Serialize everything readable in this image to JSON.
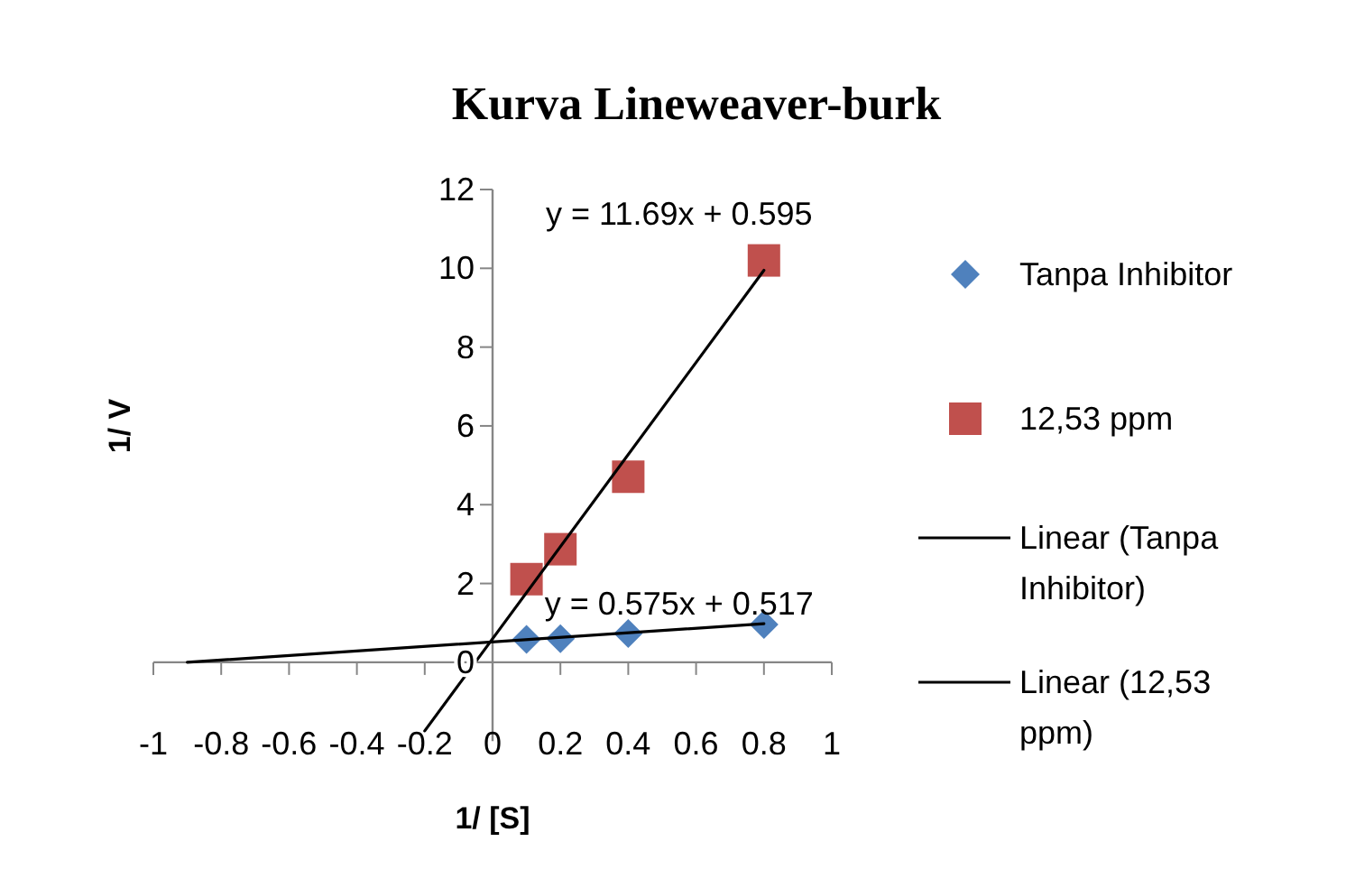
{
  "chart_data": {
    "type": "scatter",
    "title": "Kurva Lineweaver-burk",
    "xlabel": "1/ [S]",
    "ylabel": "1/ V",
    "xlim": [
      -1,
      1
    ],
    "xticks": [
      -1,
      -0.8,
      -0.6,
      -0.4,
      -0.2,
      0,
      0.2,
      0.4,
      0.6,
      0.8,
      1
    ],
    "ylim": [
      -2,
      12
    ],
    "yticks": [
      0,
      2,
      4,
      6,
      8,
      10,
      12
    ],
    "legend": "right",
    "grid": false,
    "series": [
      {
        "name": "Tanpa Inhibitor",
        "marker": "diamond",
        "color": "#4f81bd",
        "x": [
          0.1,
          0.2,
          0.4,
          0.8
        ],
        "values": [
          0.58,
          0.6,
          0.73,
          0.96
        ]
      },
      {
        "name": "12,53 ppm",
        "marker": "square",
        "color": "#c0504d",
        "x": [
          0.1,
          0.2,
          0.4,
          0.8
        ],
        "values": [
          2.11,
          2.87,
          4.71,
          10.2
        ]
      },
      {
        "name": "Linear (Tanpa Inhibitor)",
        "type": "line",
        "marker": "none",
        "line_style": "solid",
        "color": "#000000",
        "x": [
          -0.9,
          0.8
        ],
        "values": [
          0.0,
          0.98
        ]
      },
      {
        "name": "Linear (12,53 ppm)",
        "type": "line",
        "marker": "none",
        "line_style": "solid",
        "color": "#000000",
        "x": [
          -0.2,
          0.8
        ],
        "values": [
          -1.74,
          9.95
        ]
      }
    ],
    "annotations": [
      "y = 11.69x + 0.595",
      "y = 0.575x + 0.517"
    ]
  }
}
